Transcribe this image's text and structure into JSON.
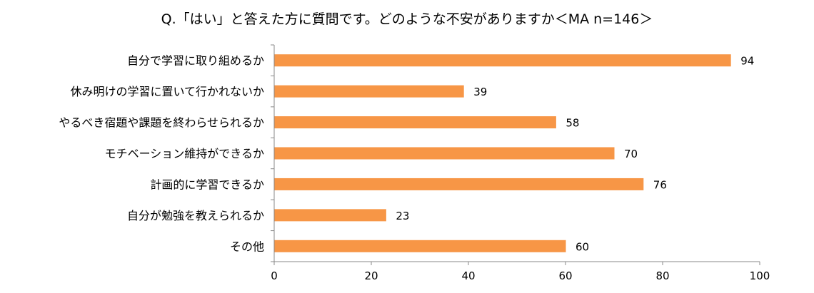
{
  "chart_data": {
    "type": "bar",
    "orientation": "horizontal",
    "title": "Q.「はい」と答えた方に質問です。どのような不安がありますか＜MA n=146＞",
    "categories": [
      "自分で学習に取り組めるか",
      "休み明けの学習に置いて行かれないか",
      "やるべき宿題や課題を終わらせられるか",
      "モチベーション維持ができるか",
      "計画的に学習できるか",
      "自分が勉強を教えられるか",
      "その他"
    ],
    "values": [
      94,
      39,
      58,
      70,
      76,
      23,
      60
    ],
    "xlim": [
      0,
      100
    ],
    "xticks": [
      0,
      20,
      40,
      60,
      80,
      100
    ],
    "xlabel": "",
    "ylabel": "",
    "grid": false,
    "legend": "none",
    "bar_color": "#f79646"
  }
}
